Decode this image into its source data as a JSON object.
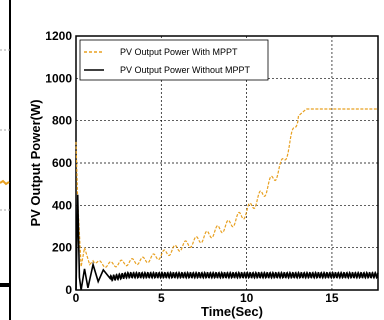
{
  "chart_data": {
    "type": "line",
    "xlabel": "Time(Sec)",
    "ylabel": "PV Output Power(W)",
    "xlim": [
      0,
      17.7
    ],
    "ylim": [
      0,
      1200
    ],
    "x_ticks": [
      0,
      5,
      10,
      15
    ],
    "y_ticks": [
      0,
      200,
      400,
      600,
      800,
      1000,
      1200
    ],
    "grid": true,
    "legend_position": "top-left",
    "series": [
      {
        "name": "PV Output Power  With MPPT",
        "color": "#E8A020",
        "style": "dashed",
        "x": [
          0,
          0.1,
          0.3,
          0.5,
          0.8,
          1.0,
          1.5,
          2.0,
          3.0,
          4.0,
          5.0,
          6.0,
          7.0,
          8.0,
          9.0,
          10.0,
          11.0,
          12.0,
          12.5,
          13.0,
          13.5,
          14.0,
          15.0,
          16.0,
          17.0,
          17.7
        ],
        "values": [
          700,
          420,
          110,
          200,
          120,
          145,
          120,
          120,
          130,
          140,
          165,
          200,
          230,
          270,
          310,
          370,
          460,
          580,
          680,
          820,
          855,
          855,
          855,
          855,
          855,
          855
        ]
      },
      {
        "name": "PV Output Power  Without MPPT",
        "color": "#000000",
        "style": "solid",
        "x": [
          0,
          0.1,
          0.2,
          0.3,
          0.5,
          0.7,
          1.0,
          1.3,
          1.6,
          2.0,
          3.0,
          5.0,
          10.0,
          15.0,
          17.7
        ],
        "values": [
          0,
          450,
          60,
          0,
          100,
          10,
          120,
          40,
          95,
          55,
          70,
          70,
          70,
          70,
          70
        ]
      }
    ]
  }
}
